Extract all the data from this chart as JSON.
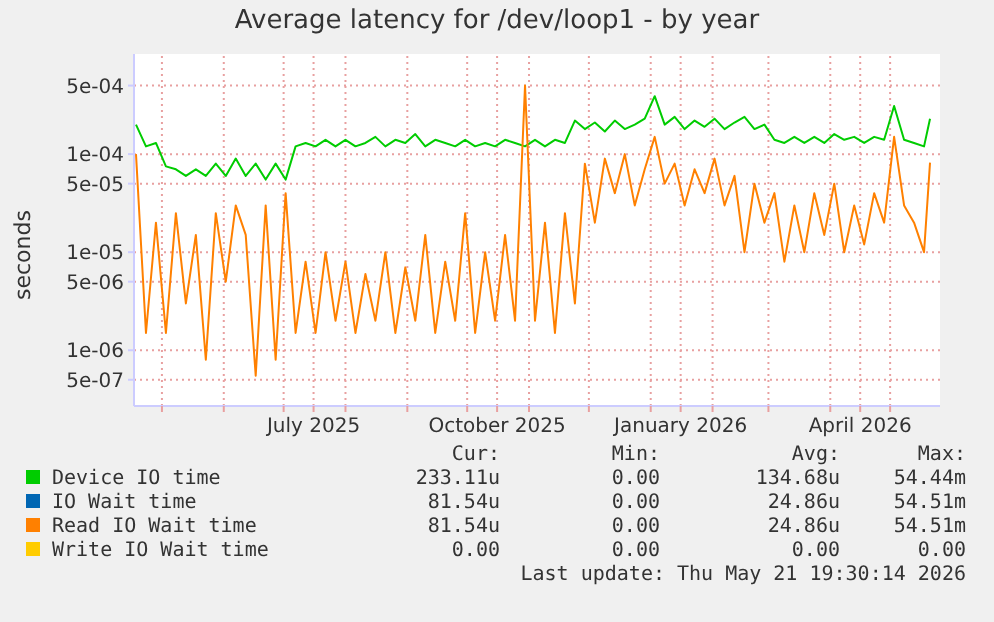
{
  "chart_data": {
    "type": "line",
    "title": "Average latency for /dev/loop1 - by year",
    "ylabel": "seconds",
    "log": "y",
    "grid": true,
    "legend": "bottom",
    "marker": "none",
    "line_style": "solid",
    "xlim": [
      "2025-04-17",
      "2026-05-26"
    ],
    "xticks": [
      {
        "value": "2025-05-01",
        "label": null
      },
      {
        "value": "2025-06-01",
        "label": null
      },
      {
        "value": "2025-07-01",
        "label": null
      },
      {
        "value": "2025-07-16",
        "label": "July 2025"
      },
      {
        "value": "2025-08-01",
        "label": null
      },
      {
        "value": "2025-09-01",
        "label": null
      },
      {
        "value": "2025-10-01",
        "label": null
      },
      {
        "value": "2025-10-16",
        "label": "October 2025"
      },
      {
        "value": "2025-11-01",
        "label": null
      },
      {
        "value": "2025-12-01",
        "label": null
      },
      {
        "value": "2026-01-01",
        "label": null
      },
      {
        "value": "2026-01-16",
        "label": "January 2026"
      },
      {
        "value": "2026-02-01",
        "label": null
      },
      {
        "value": "2026-03-01",
        "label": null
      },
      {
        "value": "2026-04-01",
        "label": null
      },
      {
        "value": "2026-04-16",
        "label": "April 2026"
      },
      {
        "value": "2026-05-01",
        "label": null
      }
    ],
    "ylim": [
      2.7e-07,
      0.00105
    ],
    "yticks": [
      {
        "value": 5e-07,
        "label": "5e-07"
      },
      {
        "value": 1e-06,
        "label": "1e-06"
      },
      {
        "value": 5e-06,
        "label": "5e-06"
      },
      {
        "value": 1e-05,
        "label": "1e-05"
      },
      {
        "value": 5e-05,
        "label": "5e-05"
      },
      {
        "value": 0.0001,
        "label": "1e-04"
      },
      {
        "value": 0.0005,
        "label": "5e-04"
      }
    ],
    "x": [
      "2025-04-18",
      "2025-04-23",
      "2025-04-28",
      "2025-05-03",
      "2025-05-08",
      "2025-05-13",
      "2025-05-18",
      "2025-05-23",
      "2025-05-28",
      "2025-06-02",
      "2025-06-07",
      "2025-06-12",
      "2025-06-17",
      "2025-06-22",
      "2025-06-27",
      "2025-07-02",
      "2025-07-07",
      "2025-07-12",
      "2025-07-17",
      "2025-07-22",
      "2025-07-27",
      "2025-08-01",
      "2025-08-06",
      "2025-08-11",
      "2025-08-16",
      "2025-08-21",
      "2025-08-26",
      "2025-08-31",
      "2025-09-05",
      "2025-09-10",
      "2025-09-15",
      "2025-09-20",
      "2025-09-25",
      "2025-09-30",
      "2025-10-05",
      "2025-10-10",
      "2025-10-15",
      "2025-10-20",
      "2025-10-25",
      "2025-10-30",
      "2025-11-04",
      "2025-11-09",
      "2025-11-14",
      "2025-11-19",
      "2025-11-24",
      "2025-11-29",
      "2025-12-04",
      "2025-12-09",
      "2025-12-14",
      "2025-12-19",
      "2025-12-24",
      "2025-12-29",
      "2026-01-03",
      "2026-01-08",
      "2026-01-13",
      "2026-01-18",
      "2026-01-23",
      "2026-01-28",
      "2026-02-02",
      "2026-02-07",
      "2026-02-12",
      "2026-02-17",
      "2026-02-22",
      "2026-02-27",
      "2026-03-04",
      "2026-03-09",
      "2026-03-14",
      "2026-03-19",
      "2026-03-24",
      "2026-03-29",
      "2026-04-03",
      "2026-04-08",
      "2026-04-13",
      "2026-04-18",
      "2026-04-23",
      "2026-04-28",
      "2026-05-03",
      "2026-05-08",
      "2026-05-13",
      "2026-05-18",
      "2026-05-21"
    ],
    "series": [
      {
        "name": "Device IO time",
        "color": "#00cc00",
        "values": [
          0.0002,
          0.00012,
          0.00013,
          7.5e-05,
          7e-05,
          6e-05,
          7e-05,
          6e-05,
          8e-05,
          6e-05,
          9e-05,
          6e-05,
          8e-05,
          5.5e-05,
          8e-05,
          5.5e-05,
          0.00012,
          0.00013,
          0.00012,
          0.00014,
          0.00012,
          0.00014,
          0.00012,
          0.00013,
          0.00015,
          0.00012,
          0.00014,
          0.00013,
          0.00016,
          0.00012,
          0.00014,
          0.00013,
          0.00012,
          0.00014,
          0.00012,
          0.00013,
          0.00012,
          0.00014,
          0.00013,
          0.00012,
          0.00014,
          0.00012,
          0.00014,
          0.00013,
          0.00022,
          0.00018,
          0.00021,
          0.00017,
          0.00022,
          0.00018,
          0.0002,
          0.00023,
          0.00039,
          0.0002,
          0.00024,
          0.00018,
          0.00022,
          0.00019,
          0.00023,
          0.00018,
          0.00021,
          0.00024,
          0.00018,
          0.0002,
          0.00014,
          0.00013,
          0.00015,
          0.00013,
          0.00015,
          0.00013,
          0.00016,
          0.00014,
          0.00015,
          0.00013,
          0.00015,
          0.00014,
          0.00031,
          0.00014,
          0.00013,
          0.00012,
          0.00023
        ]
      },
      {
        "name": "IO Wait time",
        "color": "#0066b3",
        "values": [
          null,
          null,
          null,
          null,
          null,
          null,
          null,
          null,
          null,
          null,
          null,
          null,
          null,
          null,
          null,
          null,
          null,
          null,
          null,
          null,
          null,
          null,
          null,
          null,
          null,
          null,
          null,
          null,
          null,
          null,
          null,
          null,
          null,
          null,
          null,
          null,
          null,
          null,
          null,
          null,
          null,
          null,
          null,
          null,
          null,
          null,
          null,
          null,
          null,
          null,
          null,
          null,
          null,
          null,
          null,
          null,
          null,
          null,
          null,
          null,
          null,
          null,
          null,
          null,
          null,
          null,
          null,
          null,
          null,
          null,
          null,
          null,
          null,
          null,
          null,
          null,
          null,
          null,
          null,
          null,
          null
        ]
      },
      {
        "name": "Read IO Wait time",
        "color": "#ff8000",
        "values": [
          0.0001,
          1.5e-06,
          2e-05,
          1.5e-06,
          2.5e-05,
          3e-06,
          1.5e-05,
          8e-07,
          2.5e-05,
          5e-06,
          3e-05,
          1.5e-05,
          5.5e-07,
          3e-05,
          8e-07,
          4e-05,
          1.5e-06,
          8e-06,
          1.5e-06,
          1e-05,
          2e-06,
          8e-06,
          1.5e-06,
          6e-06,
          2e-06,
          1e-05,
          1.5e-06,
          7e-06,
          2e-06,
          1.5e-05,
          1.5e-06,
          8e-06,
          2e-06,
          2.5e-05,
          1.5e-06,
          1e-05,
          2e-06,
          1.5e-05,
          2e-06,
          0.0005,
          2e-06,
          2e-05,
          1.5e-06,
          2.5e-05,
          3e-06,
          8e-05,
          2e-05,
          9e-05,
          4e-05,
          0.0001,
          3e-05,
          7e-05,
          0.00015,
          5e-05,
          8e-05,
          3e-05,
          7e-05,
          4e-05,
          9e-05,
          3e-05,
          6e-05,
          1e-05,
          5e-05,
          2e-05,
          4e-05,
          8e-06,
          3e-05,
          1e-05,
          4e-05,
          1.5e-05,
          5e-05,
          1e-05,
          3e-05,
          1.2e-05,
          4e-05,
          2e-05,
          0.00015,
          3e-05,
          2e-05,
          1e-05,
          8.2e-05
        ]
      },
      {
        "name": "Write IO Wait time",
        "color": "#ffcc00",
        "values": [
          null,
          null,
          null,
          null,
          null,
          null,
          null,
          null,
          null,
          null,
          null,
          null,
          null,
          null,
          null,
          null,
          null,
          null,
          null,
          null,
          null,
          null,
          null,
          null,
          null,
          null,
          null,
          null,
          null,
          null,
          null,
          null,
          null,
          null,
          null,
          null,
          null,
          null,
          null,
          null,
          null,
          null,
          null,
          null,
          null,
          null,
          null,
          null,
          null,
          null,
          null,
          null,
          null,
          null,
          null,
          null,
          null,
          null,
          null,
          null,
          null,
          null,
          null,
          null,
          null,
          null,
          null,
          null,
          null,
          null,
          null,
          null,
          null,
          null,
          null,
          null,
          null,
          null,
          null,
          null,
          null
        ]
      }
    ],
    "annotations": [
      "Cur:",
      "Min:",
      "Avg:",
      "Max:",
      "233.11u",
      "0.00",
      "134.68u",
      "54.44m",
      "81.54u",
      "0.00",
      "24.86u",
      "54.51m",
      "81.54u",
      "0.00",
      "24.86u",
      "54.51m",
      "0.00",
      "0.00",
      "0.00",
      "0.00",
      "Last update: Thu May 21 19:30:14 2026"
    ]
  }
}
